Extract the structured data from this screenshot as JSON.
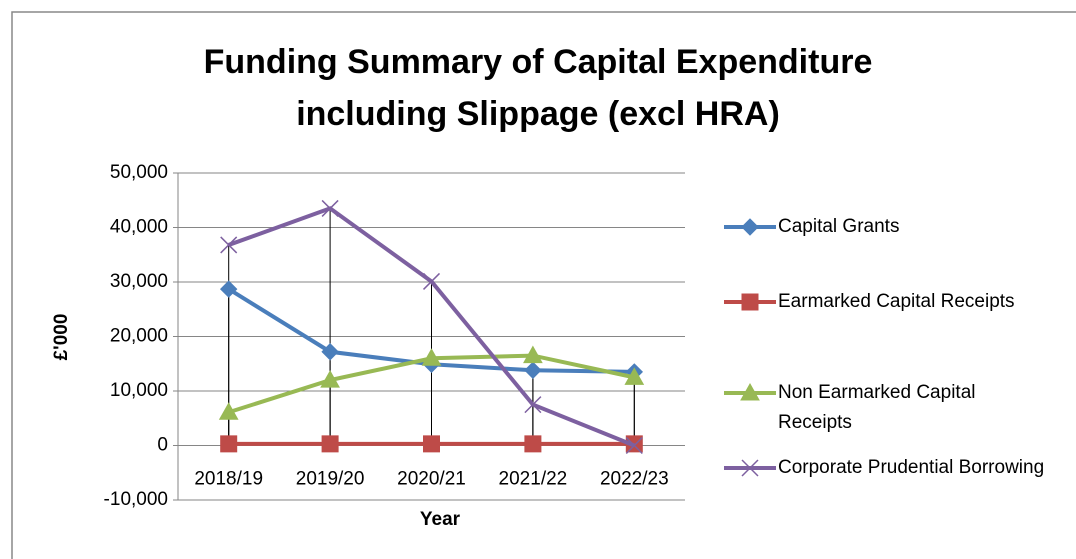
{
  "chart_data": {
    "type": "line",
    "title": "Funding Summary of Capital Expenditure including Slippage (excl HRA)",
    "x_label": "Year",
    "y_label": "£'000",
    "categories": [
      "2018/19",
      "2019/20",
      "2020/21",
      "2021/22",
      "2022/23"
    ],
    "series": [
      {
        "name": "Capital Grants",
        "color": "#4a7ebb",
        "marker": "diamond",
        "values": [
          28700,
          17200,
          14900,
          13800,
          13500
        ]
      },
      {
        "name": "Earmarked Capital Receipts",
        "color": "#be4b48",
        "marker": "square",
        "values": [
          300,
          300,
          300,
          300,
          300
        ]
      },
      {
        "name": "Non Earmarked Capital Receipts",
        "color": "#98b954",
        "marker": "triangle",
        "values": [
          6100,
          12000,
          16000,
          16500,
          12500
        ]
      },
      {
        "name": "Corporate Prudential Borrowing",
        "color": "#7d60a0",
        "marker": "x",
        "values": [
          36800,
          43500,
          30100,
          7500,
          0
        ]
      }
    ],
    "ylim": [
      -10000,
      50000
    ],
    "yticks": [
      {
        "value": -10000,
        "label": "-10,000"
      },
      0,
      {
        "value": 10000,
        "label": "10,000"
      },
      {
        "value": 20000,
        "label": "20,000"
      },
      {
        "value": 30000,
        "label": "30,000"
      },
      {
        "value": 40000,
        "label": "40,000"
      },
      {
        "value": 50000,
        "label": "50,000"
      }
    ],
    "grid": true,
    "drop_lines": true,
    "legend": "right"
  }
}
